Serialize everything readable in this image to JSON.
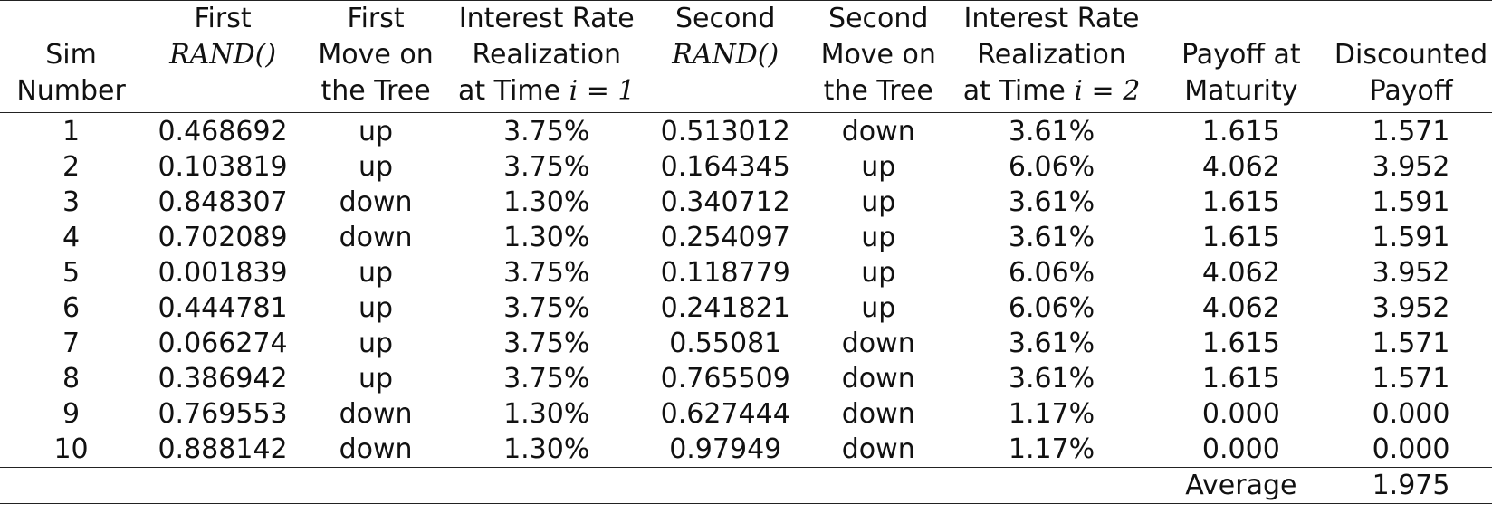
{
  "table": {
    "headers": [
      [
        "",
        "Sim",
        "Number"
      ],
      [
        "First",
        "RAND()",
        ""
      ],
      [
        "First",
        "Move on",
        "the Tree"
      ],
      [
        "Interest Rate",
        "Realization",
        "at Time i = 1"
      ],
      [
        "Second",
        "RAND()",
        ""
      ],
      [
        "Second",
        "Move on",
        "the Tree"
      ],
      [
        "Interest Rate",
        "Realization",
        "at Time i = 2"
      ],
      [
        "",
        "Payoff at",
        "Maturity"
      ],
      [
        "",
        "Discounted",
        "Payoff"
      ]
    ],
    "rows": [
      [
        "1",
        "0.468692",
        "up",
        "3.75%",
        "0.513012",
        "down",
        "3.61%",
        "1.615",
        "1.571"
      ],
      [
        "2",
        "0.103819",
        "up",
        "3.75%",
        "0.164345",
        "up",
        "6.06%",
        "4.062",
        "3.952"
      ],
      [
        "3",
        "0.848307",
        "down",
        "1.30%",
        "0.340712",
        "up",
        "3.61%",
        "1.615",
        "1.591"
      ],
      [
        "4",
        "0.702089",
        "down",
        "1.30%",
        "0.254097",
        "up",
        "3.61%",
        "1.615",
        "1.591"
      ],
      [
        "5",
        "0.001839",
        "up",
        "3.75%",
        "0.118779",
        "up",
        "6.06%",
        "4.062",
        "3.952"
      ],
      [
        "6",
        "0.444781",
        "up",
        "3.75%",
        "0.241821",
        "up",
        "6.06%",
        "4.062",
        "3.952"
      ],
      [
        "7",
        "0.066274",
        "up",
        "3.75%",
        "0.55081",
        "down",
        "3.61%",
        "1.615",
        "1.571"
      ],
      [
        "8",
        "0.386942",
        "up",
        "3.75%",
        "0.765509",
        "down",
        "3.61%",
        "1.615",
        "1.571"
      ],
      [
        "9",
        "0.769553",
        "down",
        "1.30%",
        "0.627444",
        "down",
        "1.17%",
        "0.000",
        "0.000"
      ],
      [
        "10",
        "0.888142",
        "down",
        "1.30%",
        "0.97949",
        "down",
        "1.17%",
        "0.000",
        "0.000"
      ]
    ],
    "footer": {
      "label": "Average",
      "value": "1.975"
    }
  }
}
